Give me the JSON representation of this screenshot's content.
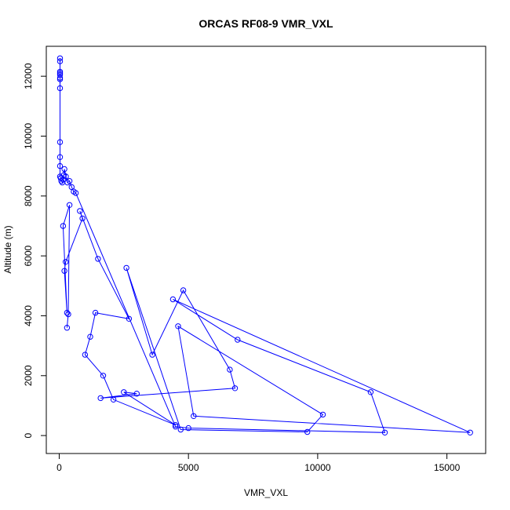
{
  "chart_data": {
    "type": "scatter",
    "title": "ORCAS RF08-9 VMR_VXL",
    "xlabel": "VMR_VXL",
    "ylabel": "Altitude (m)",
    "xlim": [
      -500,
      16500
    ],
    "ylim": [
      -600,
      13000
    ],
    "x_ticks": [
      0,
      5000,
      10000,
      15000
    ],
    "x_tick_labels": [
      "0",
      "5000",
      "10000",
      "15000"
    ],
    "y_ticks": [
      0,
      2000,
      4000,
      6000,
      8000,
      10000,
      12000
    ],
    "y_tick_labels": [
      "0",
      "2000",
      "4000",
      "6000",
      "8000",
      "10000",
      "12000"
    ],
    "grid": false,
    "legend": "none",
    "series_color": "#0000ff",
    "series": [
      {
        "mode": "lines+markers",
        "x": [
          30,
          30,
          30,
          30,
          30,
          30,
          30,
          30,
          30,
          30,
          30,
          30,
          60,
          80,
          120,
          160,
          180,
          200,
          260,
          320,
          400,
          480,
          560,
          640,
          4500,
          5000,
          12600,
          12050,
          6900,
          4400,
          15900,
          5200,
          4600,
          10200,
          9600,
          4700,
          2600,
          3600,
          4800,
          6600,
          6800,
          1600,
          3000,
          2500,
          4500,
          2100,
          1700,
          1000,
          1200,
          1400,
          2700,
          1500,
          800,
          900,
          250,
          200,
          300,
          150,
          400,
          350,
          300
        ],
        "y": [
          12600,
          12500,
          12150,
          12100,
          12050,
          11950,
          11900,
          11600,
          9800,
          9300,
          9000,
          8650,
          8600,
          8500,
          8450,
          8550,
          8700,
          8900,
          8650,
          8450,
          8500,
          8300,
          8150,
          8100,
          300,
          250,
          100,
          1450,
          3200,
          4550,
          100,
          650,
          3650,
          700,
          120,
          200,
          5600,
          2700,
          4850,
          2200,
          1580,
          1250,
          1400,
          1450,
          350,
          1200,
          2000,
          2700,
          3300,
          4100,
          3900,
          5900,
          7500,
          7250,
          5800,
          5500,
          4100,
          7000,
          7700,
          4050,
          3600
        ]
      }
    ]
  }
}
